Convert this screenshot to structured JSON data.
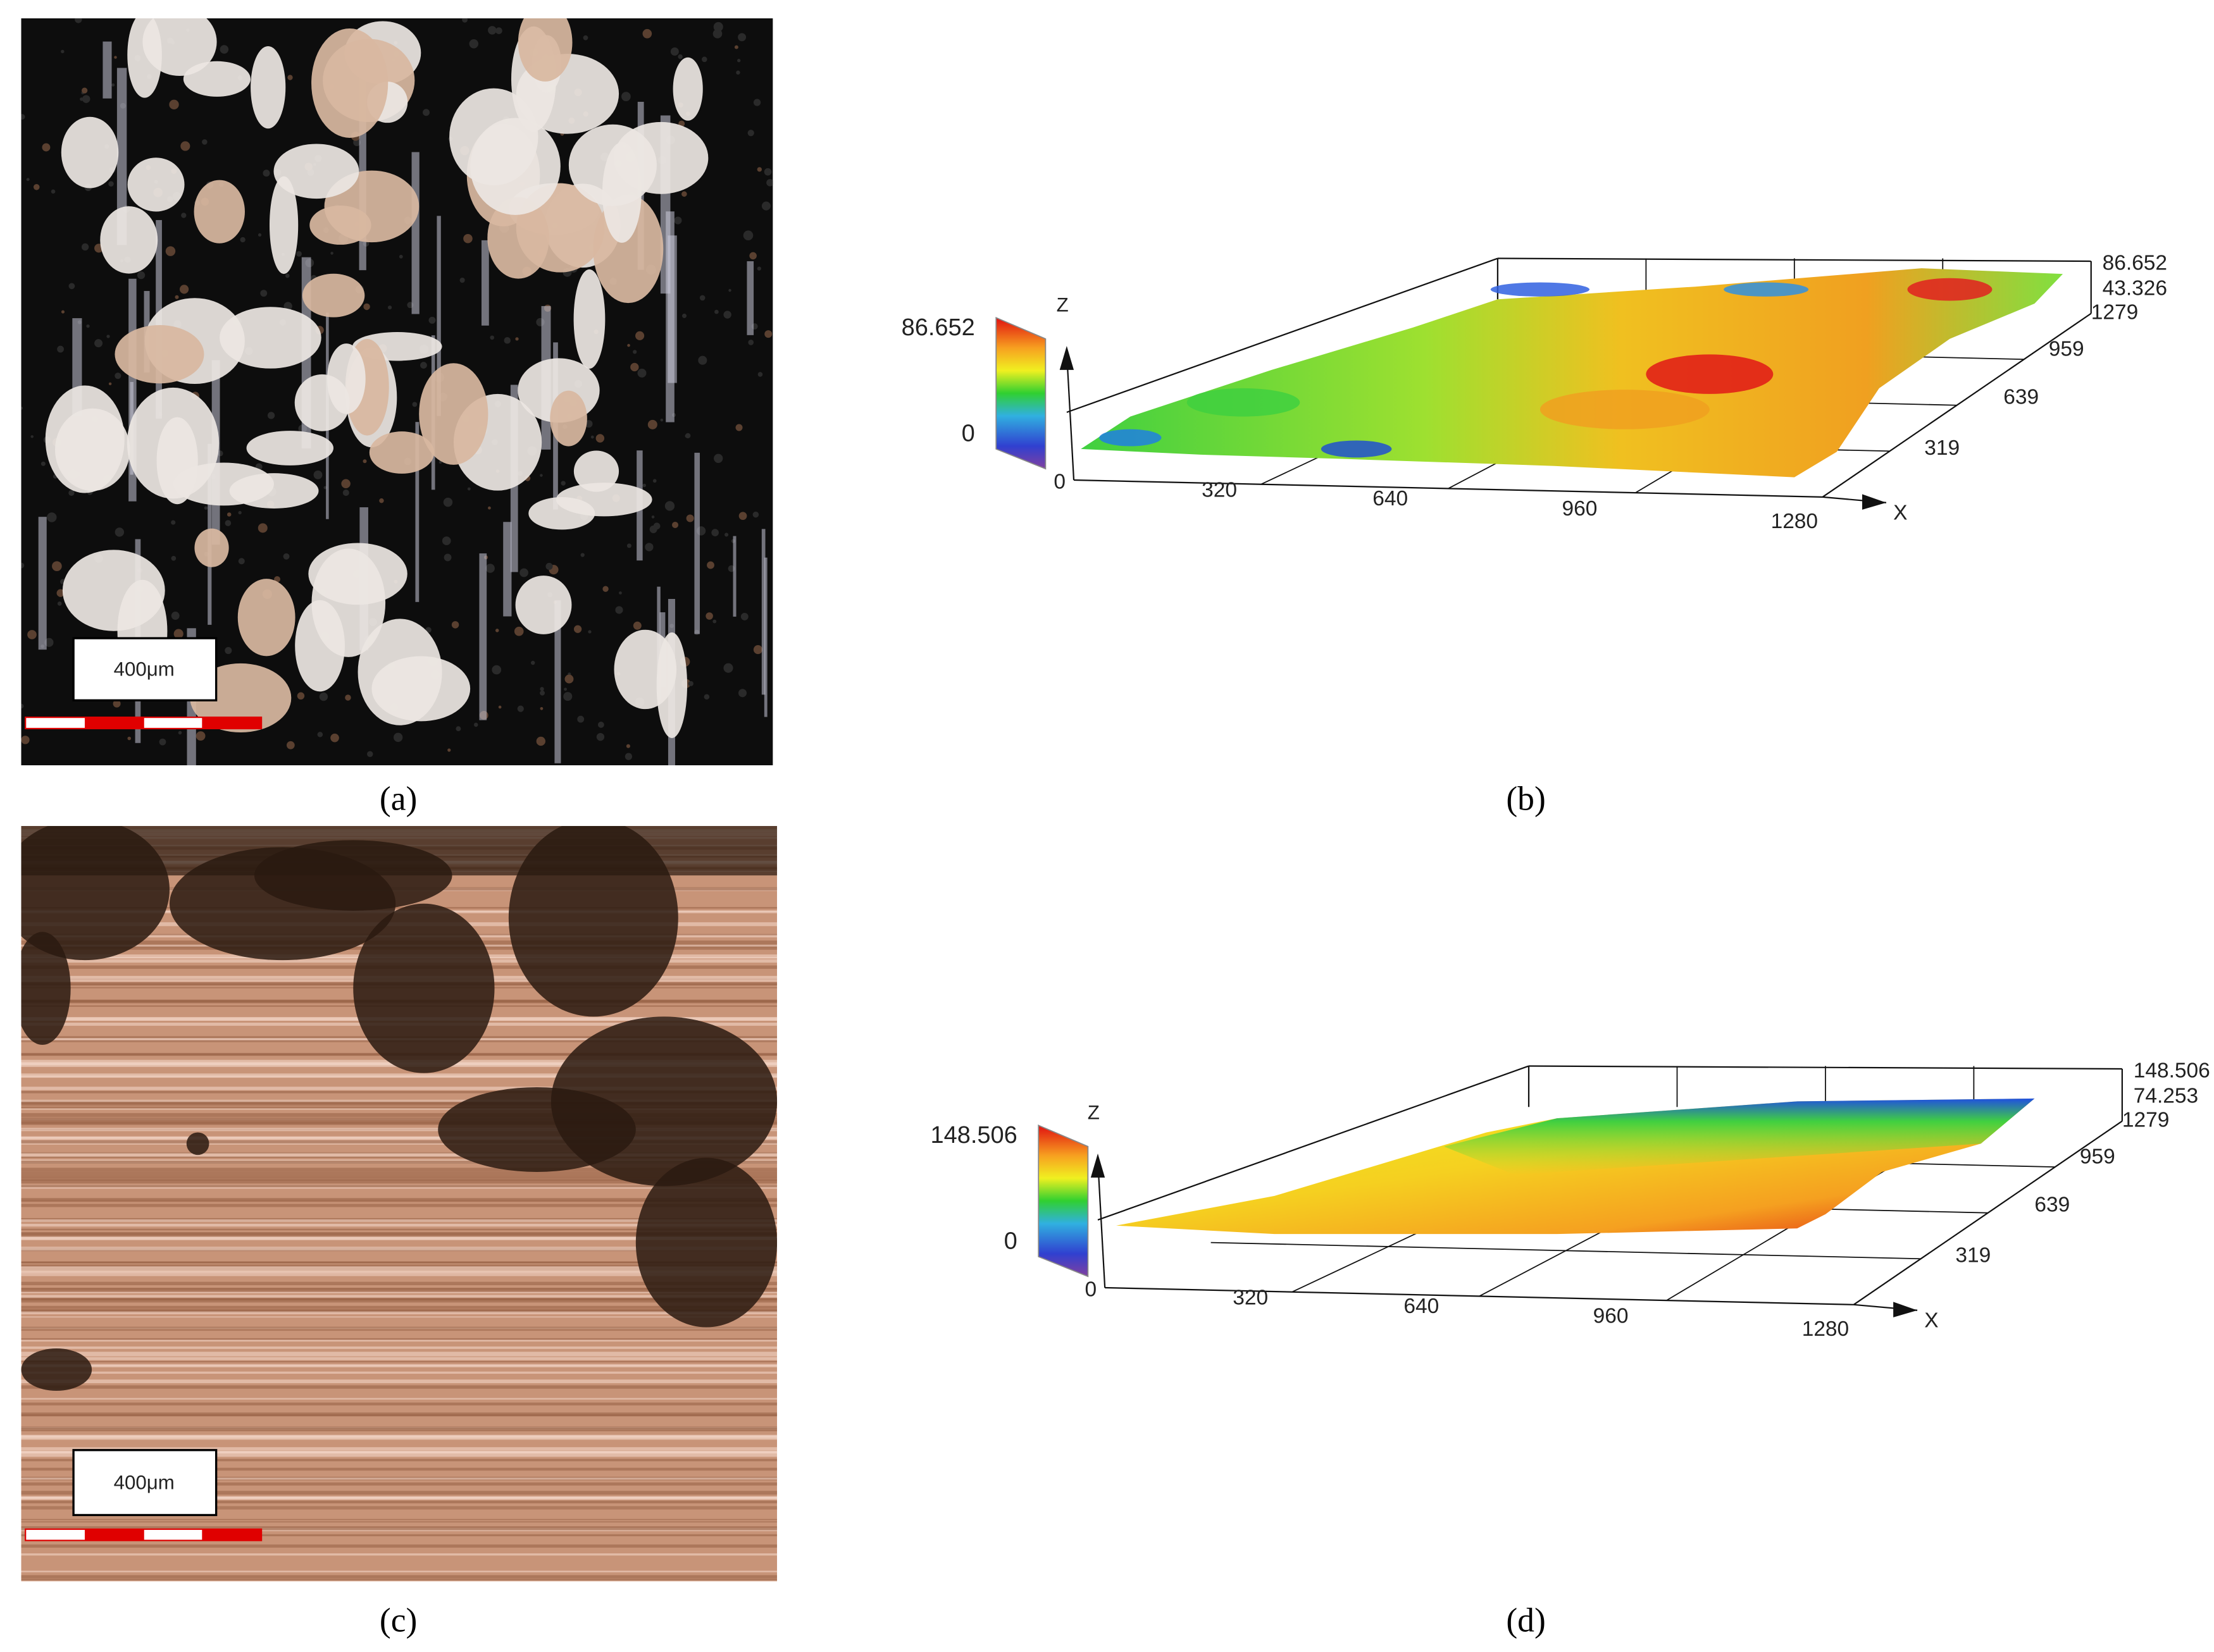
{
  "panels": [
    {
      "label": "(a)",
      "scale_bar": "400μm"
    },
    {
      "label": "(b)",
      "colorbar": {
        "max": "86.652",
        "min": "0"
      },
      "z_axis": "Z",
      "x_axis": "X",
      "x_ticks": [
        "0",
        "320",
        "640",
        "960",
        "1280"
      ],
      "y_ticks": [
        "319",
        "639",
        "959",
        "1279"
      ],
      "z_ticks": [
        "86.652",
        "43.326"
      ]
    },
    {
      "label": "(c)",
      "scale_bar": "400μm"
    },
    {
      "label": "(d)",
      "colorbar": {
        "max": "148.506",
        "min": "0"
      },
      "z_axis": "Z",
      "x_axis": "X",
      "x_ticks": [
        "0",
        "320",
        "640",
        "960",
        "1280"
      ],
      "y_ticks": [
        "319",
        "639",
        "959",
        "1279"
      ],
      "z_ticks": [
        "148.506",
        "74.253"
      ]
    }
  ]
}
